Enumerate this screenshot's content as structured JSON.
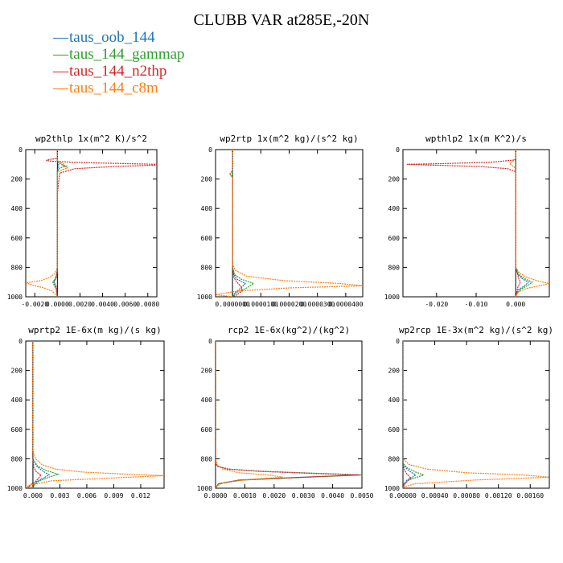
{
  "figure": {
    "title": "CLUBB VAR at285E,-20N"
  },
  "legend": [
    {
      "label": "taus_oob_144",
      "color": "#1f77b4"
    },
    {
      "label": "taus_144_gammap",
      "color": "#2ca02c"
    },
    {
      "label": "taus_144_n2thp",
      "color": "#d62728"
    },
    {
      "label": "taus_144_c8m",
      "color": "#ff7f0e"
    }
  ],
  "chart_data": [
    {
      "type": "line",
      "title": "wp2thlp  1x(m^2 K)/s^2",
      "xlim": [
        -0.0028,
        0.0088
      ],
      "ylim": [
        1000,
        0
      ],
      "xticks": [
        -0.002,
        0,
        0.002,
        0.004,
        0.006,
        0.008
      ],
      "xtick_labels": [
        "-0.0020",
        "0.0000",
        "0.0020",
        "0.0040",
        "0.0060",
        "0.0080"
      ],
      "yticks": [
        0,
        200,
        400,
        600,
        800,
        1000
      ],
      "series": [
        {
          "name": "taus_oob_144",
          "color": "#1f77b4",
          "y": [
            0,
            80,
            100,
            115,
            150,
            300,
            820,
            860,
            880,
            900,
            920,
            950,
            1000
          ],
          "x": [
            0,
            0,
            0.0001,
            0.0001,
            0,
            0,
            0,
            -0.0001,
            -0.0002,
            -0.0003,
            -0.0002,
            -0.0001,
            0
          ]
        },
        {
          "name": "taus_144_gammap",
          "color": "#2ca02c",
          "y": [
            0,
            80,
            100,
            112,
            125,
            150,
            300,
            820,
            860,
            880,
            900,
            920,
            950,
            1000
          ],
          "x": [
            0,
            0,
            0.0003,
            0.0008,
            0.0002,
            0,
            0,
            0,
            -0.0001,
            -0.0002,
            -0.0004,
            -0.0003,
            -0.0001,
            0
          ]
        },
        {
          "name": "taus_144_n2thp",
          "color": "#d62728",
          "y": [
            0,
            60,
            68,
            74,
            80,
            88,
            95,
            100,
            106,
            115,
            130,
            160,
            300,
            820,
            870,
            900,
            930,
            1000
          ],
          "x": [
            0,
            0,
            -0.0008,
            -0.001,
            -0.0004,
            0.002,
            0.006,
            0.0088,
            0.0086,
            0.005,
            0.0015,
            0.0002,
            0,
            0,
            -0.0001,
            -0.0003,
            -0.0001,
            0
          ]
        },
        {
          "name": "taus_144_c8m",
          "color": "#ff7f0e",
          "y": [
            0,
            70,
            85,
            100,
            110,
            125,
            140,
            160,
            300,
            800,
            840,
            870,
            890,
            905,
            920,
            940,
            960,
            980,
            1000
          ],
          "x": [
            0,
            0,
            0.0002,
            0.0006,
            0.0005,
            0.0009,
            0.0003,
            0,
            0,
            0,
            -0.0002,
            -0.0007,
            -0.0015,
            -0.0028,
            -0.0022,
            -0.0012,
            -0.0005,
            -0.0002,
            0
          ]
        }
      ]
    },
    {
      "type": "line",
      "title": "wp2rtp  1x(m^2 kg)/(s^2 kg)",
      "xlim": [
        -6e-06,
        4.6e-05
      ],
      "ylim": [
        1000,
        0
      ],
      "xticks": [
        0,
        1e-05,
        2e-05,
        3e-05,
        4e-05
      ],
      "xtick_labels": [
        "0.0000000",
        "0.0000100",
        "0.0000200",
        "0.0000300",
        "0.0000400"
      ],
      "yticks": [
        0,
        200,
        400,
        600,
        800,
        1000
      ],
      "series": [
        {
          "name": "taus_oob_144",
          "color": "#1f77b4",
          "y": [
            0,
            150,
            170,
            800,
            850,
            880,
            910,
            940,
            970,
            1000
          ],
          "x": [
            0,
            0,
            0,
            0,
            5e-07,
            1.5e-06,
            4.5e-06,
            3e-06,
            1e-06,
            0
          ]
        },
        {
          "name": "taus_144_gammap",
          "color": "#2ca02c",
          "y": [
            0,
            150,
            170,
            800,
            850,
            880,
            910,
            940,
            970,
            1000
          ],
          "x": [
            0,
            0,
            0,
            0,
            8e-07,
            3e-06,
            7.5e-06,
            5e-06,
            1.5e-06,
            0
          ]
        },
        {
          "name": "taus_144_n2thp",
          "color": "#d62728",
          "y": [
            0,
            140,
            165,
            190,
            800,
            870,
            900,
            930,
            960,
            990,
            1000
          ],
          "x": [
            0,
            0,
            -8e-07,
            0,
            0,
            5e-07,
            1.5e-06,
            3e-06,
            3.5e-06,
            1.2e-06,
            0
          ]
        },
        {
          "name": "taus_144_c8m",
          "color": "#ff7f0e",
          "y": [
            0,
            140,
            165,
            190,
            780,
            820,
            860,
            890,
            910,
            925,
            940,
            960,
            985,
            1000
          ],
          "x": [
            0,
            0,
            -1e-06,
            0,
            0,
            1e-06,
            5e-06,
            1.8e-05,
            3.8e-05,
            4.6e-05,
            2e-05,
            2e-06,
            -6e-06,
            0
          ]
        }
      ]
    },
    {
      "type": "line",
      "title": "wpthlp2  1x(m K^2)/s",
      "xlim": [
        -0.0285,
        0.0085
      ],
      "ylim": [
        1000,
        0
      ],
      "xticks": [
        -0.02,
        -0.01,
        0
      ],
      "xtick_labels": [
        "-0.020",
        "-0.010",
        "0.000"
      ],
      "yticks": [
        0,
        200,
        400,
        600,
        800,
        1000
      ],
      "series": [
        {
          "name": "taus_oob_144",
          "color": "#1f77b4",
          "y": [
            0,
            800,
            850,
            880,
            900,
            920,
            950,
            980,
            1000
          ],
          "x": [
            0,
            0,
            0.0006,
            0.0018,
            0.0032,
            0.0025,
            0.0008,
            0.0002,
            0
          ]
        },
        {
          "name": "taus_144_gammap",
          "color": "#2ca02c",
          "y": [
            0,
            800,
            850,
            880,
            900,
            920,
            950,
            980,
            1000
          ],
          "x": [
            0,
            0,
            0.0008,
            0.0025,
            0.0042,
            0.0032,
            0.0012,
            0.0003,
            0
          ]
        },
        {
          "name": "taus_144_n2thp",
          "color": "#d62728",
          "y": [
            0,
            70,
            85,
            95,
            100,
            105,
            115,
            130,
            150,
            800,
            880,
            900,
            930,
            1000
          ],
          "x": [
            0,
            0,
            -0.006,
            -0.018,
            -0.0275,
            -0.022,
            -0.009,
            -0.002,
            0,
            0,
            0.0008,
            0.0012,
            0.0006,
            0
          ]
        },
        {
          "name": "taus_144_c8m",
          "color": "#ff7f0e",
          "y": [
            0,
            60,
            80,
            95,
            105,
            120,
            140,
            800,
            840,
            870,
            895,
            910,
            925,
            945,
            970,
            1000
          ],
          "x": [
            0,
            0,
            -0.0008,
            -0.0015,
            -0.001,
            -0.0003,
            0,
            0,
            0.001,
            0.003,
            0.006,
            0.0085,
            0.006,
            0.0025,
            0.0005,
            0
          ]
        }
      ]
    },
    {
      "type": "line",
      "title": "wprtp2  1E-6x(m kg)/(s kg)",
      "xlim": [
        -0.0008,
        0.0146
      ],
      "ylim": [
        1000,
        0
      ],
      "xticks": [
        0,
        0.003,
        0.006,
        0.009,
        0.012
      ],
      "xtick_labels": [
        "0.000",
        "0.003",
        "0.006",
        "0.009",
        "0.012"
      ],
      "yticks": [
        0,
        200,
        400,
        600,
        800,
        1000
      ],
      "series": [
        {
          "name": "taus_oob_144",
          "color": "#1f77b4",
          "y": [
            0,
            800,
            850,
            880,
            910,
            930,
            950,
            975,
            1000
          ],
          "x": [
            0,
            0,
            0.0004,
            0.001,
            0.0018,
            0.0012,
            0.0005,
            0.0001,
            0
          ]
        },
        {
          "name": "taus_144_gammap",
          "color": "#2ca02c",
          "y": [
            0,
            800,
            850,
            880,
            905,
            925,
            950,
            975,
            1000
          ],
          "x": [
            0,
            0,
            0.0005,
            0.0015,
            0.0028,
            0.0018,
            0.0007,
            0.0002,
            0
          ]
        },
        {
          "name": "taus_144_n2thp",
          "color": "#d62728",
          "y": [
            0,
            800,
            860,
            890,
            910,
            935,
            960,
            985,
            1000
          ],
          "x": [
            0,
            0,
            0.0001,
            0.0004,
            0.0009,
            0.0006,
            0.0002,
            -0.0005,
            0
          ]
        },
        {
          "name": "taus_144_c8m",
          "color": "#ff7f0e",
          "y": [
            0,
            750,
            800,
            840,
            870,
            890,
            905,
            915,
            930,
            950,
            975,
            990,
            1000
          ],
          "x": [
            0,
            0,
            0.0003,
            0.001,
            0.0025,
            0.0055,
            0.0105,
            0.0146,
            0.009,
            0.002,
            0,
            -0.0008,
            0
          ]
        }
      ]
    },
    {
      "type": "line",
      "title": "rcp2  1E-6x(kg^2)/(kg^2)",
      "xlim": [
        0,
        0.005
      ],
      "ylim": [
        1000,
        0
      ],
      "xticks": [
        0,
        0.001,
        0.002,
        0.003,
        0.004,
        0.005
      ],
      "xtick_labels": [
        "0.0000",
        "0.0010",
        "0.0020",
        "0.0030",
        "0.0040",
        "0.0050"
      ],
      "yticks": [
        0,
        200,
        400,
        600,
        800,
        1000
      ],
      "series": [
        {
          "name": "taus_oob_144",
          "color": "#1f77b4",
          "y": [
            0,
            820,
            850,
            870,
            885,
            900,
            910,
            925,
            945,
            970,
            1000
          ],
          "x": [
            0,
            0,
            5e-05,
            0.0004,
            0.0015,
            0.0035,
            0.005,
            0.003,
            0.0008,
            0.0001,
            0
          ]
        },
        {
          "name": "taus_144_gammap",
          "color": "#2ca02c",
          "y": [
            0,
            820,
            850,
            870,
            885,
            900,
            910,
            925,
            945,
            970,
            1000
          ],
          "x": [
            0,
            0,
            6e-05,
            0.00045,
            0.0016,
            0.0036,
            0.005,
            0.0032,
            0.0009,
            0.0001,
            0
          ]
        },
        {
          "name": "taus_144_n2thp",
          "color": "#d62728",
          "y": [
            0,
            820,
            850,
            870,
            885,
            900,
            910,
            925,
            945,
            970,
            1000
          ],
          "x": [
            0,
            0,
            5e-05,
            0.0004,
            0.0015,
            0.0034,
            0.0049,
            0.003,
            0.0008,
            0.0001,
            0
          ]
        },
        {
          "name": "taus_144_c8m",
          "color": "#ff7f0e",
          "y": [
            0,
            800,
            840,
            870,
            895,
            910,
            925,
            940,
            960,
            985,
            1000
          ],
          "x": [
            0,
            0,
            5e-05,
            0.00025,
            0.0008,
            0.0018,
            0.0023,
            0.0012,
            0.0003,
            5e-05,
            0
          ]
        }
      ]
    },
    {
      "type": "line",
      "title": "wp2rcp  1E-3x(m^2 kg)/(s^2 kg)",
      "xlim": [
        0,
        0.00184
      ],
      "ylim": [
        1000,
        0
      ],
      "xticks": [
        0,
        0.0004,
        0.0008,
        0.0012,
        0.0016
      ],
      "xtick_labels": [
        "0.00000",
        "0.00040",
        "0.00080",
        "0.00120",
        "0.00160"
      ],
      "yticks": [
        0,
        200,
        400,
        600,
        800,
        1000
      ],
      "series": [
        {
          "name": "taus_oob_144",
          "color": "#1f77b4",
          "y": [
            0,
            830,
            860,
            890,
            910,
            925,
            945,
            970,
            1000
          ],
          "x": [
            0,
            0,
            3e-05,
            0.0001,
            0.00016,
            0.00012,
            5e-05,
            1e-05,
            0
          ]
        },
        {
          "name": "taus_144_gammap",
          "color": "#2ca02c",
          "y": [
            0,
            830,
            860,
            890,
            910,
            925,
            945,
            970,
            1000
          ],
          "x": [
            0,
            0,
            5e-05,
            0.00016,
            0.00026,
            0.00018,
            7e-05,
            2e-05,
            0
          ]
        },
        {
          "name": "taus_144_n2thp",
          "color": "#d62728",
          "y": [
            0,
            840,
            880,
            910,
            930,
            950,
            975,
            1000
          ],
          "x": [
            0,
            0,
            2e-05,
            6e-05,
            0.0001,
            6e-05,
            2e-05,
            0
          ]
        },
        {
          "name": "taus_144_c8m",
          "color": "#ff7f0e",
          "y": [
            0,
            800,
            840,
            870,
            895,
            910,
            925,
            945,
            970,
            990,
            1000
          ],
          "x": [
            0,
            0,
            8e-05,
            0.0003,
            0.0008,
            0.0015,
            0.00184,
            0.0009,
            0.00015,
            2e-05,
            0
          ]
        }
      ]
    }
  ]
}
